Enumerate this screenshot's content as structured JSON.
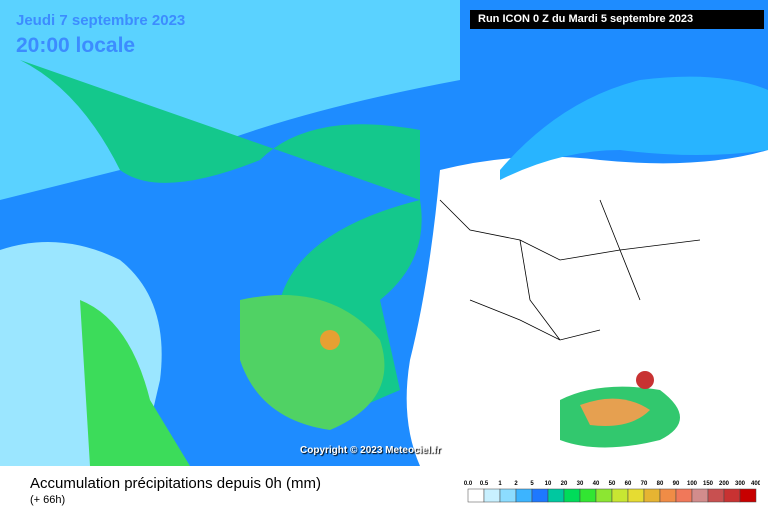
{
  "map": {
    "date": "Jeudi 7 septembre 2023",
    "time": "20:00 locale",
    "run": "Run ICON 0 Z du Mardi 5 septembre 2023",
    "copyright": "Copyright © 2023 Meteociel.fr"
  },
  "footer": {
    "title": "Accumulation précipitations depuis 0h (mm)",
    "lead": "(+ 66h)"
  },
  "legend": {
    "labels": [
      "0.0",
      "0.5",
      "1",
      "2",
      "5",
      "10",
      "20",
      "30",
      "40",
      "50",
      "60",
      "70",
      "80",
      "90",
      "100",
      "150",
      "200",
      "300",
      "400"
    ],
    "colors": [
      "#ffffff",
      "#c8f0ff",
      "#8cdcff",
      "#3cb4ff",
      "#1e78ff",
      "#00c8a0",
      "#00dc5a",
      "#32e632",
      "#8ce632",
      "#c8e632",
      "#e6dc32",
      "#e6b432",
      "#f08c46",
      "#f0785a",
      "#d28c8c",
      "#c85050",
      "#c83232",
      "#c80000"
    ]
  }
}
